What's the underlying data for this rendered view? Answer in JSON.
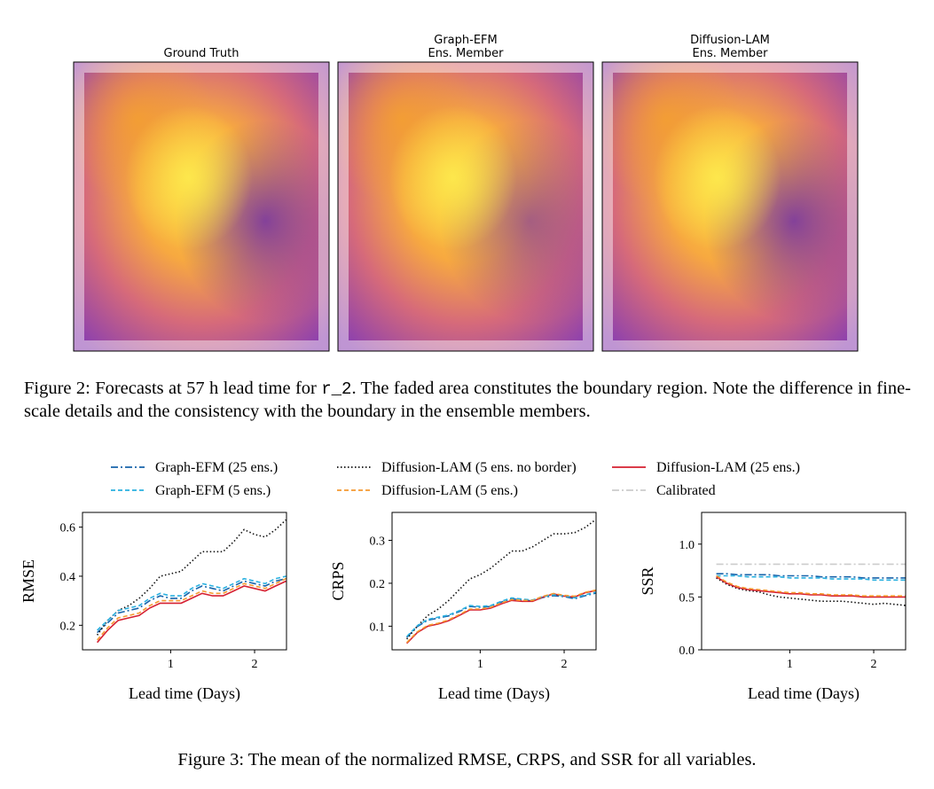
{
  "figure2": {
    "panels": [
      {
        "title": [
          "Ground Truth"
        ]
      },
      {
        "title": [
          "Graph-EFM",
          "Ens. Member"
        ]
      },
      {
        "title": [
          "Diffusion-LAM",
          "Ens. Member"
        ]
      }
    ],
    "caption": {
      "prefix": "Figure 2: Forecasts at 57 h lead time for ",
      "code": "r_2",
      "rest": ". The faded area constitutes the boundary region. Note the difference in fine-scale details and the consistency with the boundary in the ensemble members."
    }
  },
  "figure3": {
    "caption": "Figure 3: The mean of the normalized RMSE, CRPS, and SSR for all variables."
  },
  "chart_data": [
    {
      "type": "line",
      "ylabel": "RMSE",
      "xlabel": "Lead time (Days)",
      "xlim": [
        -0.05,
        2.38
      ],
      "xticks": [
        1,
        2
      ],
      "ylim": [
        0.1,
        0.66
      ],
      "yticks": [
        0.2,
        0.4,
        0.6
      ],
      "x": [
        0.125,
        0.25,
        0.375,
        0.5,
        0.625,
        0.75,
        0.875,
        1,
        1.125,
        1.25,
        1.375,
        1.5,
        1.625,
        1.75,
        1.875,
        2,
        2.125,
        2.25,
        2.375
      ],
      "series": [
        {
          "name": "Graph-EFM (25 ens.)",
          "color": "#1764ab",
          "dash": "dashdot",
          "values": [
            0.17,
            0.21,
            0.25,
            0.26,
            0.27,
            0.3,
            0.32,
            0.31,
            0.31,
            0.34,
            0.36,
            0.35,
            0.34,
            0.36,
            0.38,
            0.37,
            0.36,
            0.38,
            0.39
          ]
        },
        {
          "name": "Diffusion-LAM (5 ens. no border)",
          "color": "#111111",
          "dash": "dotted",
          "values": [
            0.16,
            0.22,
            0.26,
            0.28,
            0.31,
            0.35,
            0.4,
            0.41,
            0.42,
            0.46,
            0.5,
            0.5,
            0.5,
            0.54,
            0.59,
            0.57,
            0.56,
            0.59,
            0.63
          ]
        },
        {
          "name": "Diffusion-LAM (25 ens.)",
          "color": "#d62031",
          "dash": "solid",
          "values": [
            0.13,
            0.18,
            0.22,
            0.23,
            0.24,
            0.27,
            0.29,
            0.29,
            0.29,
            0.31,
            0.33,
            0.32,
            0.32,
            0.34,
            0.36,
            0.35,
            0.34,
            0.36,
            0.38
          ]
        },
        {
          "name": "Graph-EFM (5 ens.)",
          "color": "#29b0e0",
          "dash": "dashed",
          "values": [
            0.18,
            0.22,
            0.26,
            0.27,
            0.28,
            0.31,
            0.33,
            0.32,
            0.32,
            0.35,
            0.37,
            0.36,
            0.35,
            0.37,
            0.39,
            0.38,
            0.37,
            0.39,
            0.4
          ]
        },
        {
          "name": "Diffusion-LAM (5 ens.)",
          "color": "#f59a30",
          "dash": "dashed",
          "values": [
            0.14,
            0.19,
            0.23,
            0.24,
            0.25,
            0.28,
            0.3,
            0.3,
            0.3,
            0.32,
            0.34,
            0.33,
            0.33,
            0.35,
            0.37,
            0.36,
            0.35,
            0.37,
            0.39
          ]
        }
      ]
    },
    {
      "type": "line",
      "ylabel": "CRPS",
      "xlabel": "Lead time (Days)",
      "xlim": [
        -0.05,
        2.38
      ],
      "xticks": [
        1,
        2
      ],
      "ylim": [
        0.045,
        0.365
      ],
      "yticks": [
        0.1,
        0.2,
        0.3
      ],
      "x": [
        0.125,
        0.25,
        0.375,
        0.5,
        0.625,
        0.75,
        0.875,
        1,
        1.125,
        1.25,
        1.375,
        1.5,
        1.625,
        1.75,
        1.875,
        2,
        2.125,
        2.25,
        2.375
      ],
      "series": [
        {
          "name": "Graph-EFM (25 ens.)",
          "color": "#1764ab",
          "dash": "dashdot",
          "values": [
            0.074,
            0.099,
            0.114,
            0.119,
            0.124,
            0.134,
            0.146,
            0.144,
            0.146,
            0.156,
            0.164,
            0.161,
            0.159,
            0.167,
            0.171,
            0.169,
            0.164,
            0.171,
            0.177
          ]
        },
        {
          "name": "Diffusion-LAM (5 ens. no border)",
          "color": "#111111",
          "dash": "dotted",
          "values": [
            0.07,
            0.1,
            0.125,
            0.14,
            0.16,
            0.185,
            0.21,
            0.22,
            0.235,
            0.255,
            0.275,
            0.275,
            0.285,
            0.3,
            0.315,
            0.315,
            0.318,
            0.33,
            0.348
          ]
        },
        {
          "name": "Diffusion-LAM (25 ens.)",
          "color": "#d62031",
          "dash": "solid",
          "values": [
            0.06,
            0.085,
            0.1,
            0.105,
            0.113,
            0.125,
            0.138,
            0.138,
            0.142,
            0.152,
            0.16,
            0.158,
            0.158,
            0.168,
            0.175,
            0.17,
            0.168,
            0.178,
            0.183
          ]
        },
        {
          "name": "Graph-EFM (5 ens.)",
          "color": "#29b0e0",
          "dash": "dashed",
          "values": [
            0.076,
            0.101,
            0.116,
            0.121,
            0.126,
            0.136,
            0.148,
            0.146,
            0.148,
            0.158,
            0.166,
            0.163,
            0.161,
            0.169,
            0.173,
            0.171,
            0.166,
            0.173,
            0.179
          ]
        },
        {
          "name": "Diffusion-LAM (5 ens.)",
          "color": "#f59a30",
          "dash": "dashed",
          "values": [
            0.062,
            0.087,
            0.102,
            0.107,
            0.115,
            0.127,
            0.14,
            0.14,
            0.144,
            0.154,
            0.162,
            0.16,
            0.16,
            0.17,
            0.176,
            0.172,
            0.17,
            0.179,
            0.184
          ]
        }
      ]
    },
    {
      "type": "line",
      "ylabel": "SSR",
      "xlabel": "Lead time (Days)",
      "xlim": [
        -0.05,
        2.38
      ],
      "xticks": [
        1,
        2
      ],
      "ylim": [
        0,
        1.3
      ],
      "yticks": [
        {
          "value": 0,
          "label": "0.0"
        },
        {
          "value": 0.5,
          "label": "0.5"
        },
        {
          "value": 1,
          "label": "1.0"
        }
      ],
      "x": [
        0.125,
        0.25,
        0.375,
        0.5,
        0.625,
        0.75,
        0.875,
        1,
        1.125,
        1.25,
        1.375,
        1.5,
        1.625,
        1.75,
        1.875,
        2,
        2.125,
        2.25,
        2.375
      ],
      "series": [
        {
          "name": "Graph-EFM (25 ens.)",
          "color": "#1764ab",
          "dash": "dashdot",
          "values": [
            0.72,
            0.72,
            0.71,
            0.71,
            0.71,
            0.71,
            0.7,
            0.7,
            0.7,
            0.7,
            0.69,
            0.69,
            0.69,
            0.69,
            0.68,
            0.68,
            0.68,
            0.68,
            0.68
          ]
        },
        {
          "name": "Diffusion-LAM (5 ens. no border)",
          "color": "#111111",
          "dash": "dotted",
          "values": [
            0.68,
            0.62,
            0.58,
            0.56,
            0.55,
            0.52,
            0.5,
            0.49,
            0.48,
            0.47,
            0.46,
            0.46,
            0.46,
            0.45,
            0.44,
            0.43,
            0.44,
            0.43,
            0.42
          ]
        },
        {
          "name": "Diffusion-LAM (25 ens.)",
          "color": "#d62031",
          "dash": "solid",
          "values": [
            0.69,
            0.63,
            0.59,
            0.57,
            0.56,
            0.55,
            0.54,
            0.53,
            0.53,
            0.52,
            0.52,
            0.51,
            0.51,
            0.51,
            0.5,
            0.5,
            0.5,
            0.5,
            0.5
          ]
        },
        {
          "name": "Graph-EFM (5 ens.)",
          "color": "#29b0e0",
          "dash": "dashed",
          "values": [
            0.7,
            0.7,
            0.7,
            0.69,
            0.69,
            0.69,
            0.69,
            0.68,
            0.68,
            0.68,
            0.68,
            0.67,
            0.67,
            0.67,
            0.67,
            0.66,
            0.66,
            0.66,
            0.66
          ]
        },
        {
          "name": "Diffusion-LAM (5 ens.)",
          "color": "#f59a30",
          "dash": "dashed",
          "values": [
            0.7,
            0.64,
            0.6,
            0.58,
            0.57,
            0.56,
            0.55,
            0.54,
            0.54,
            0.53,
            0.53,
            0.52,
            0.52,
            0.52,
            0.51,
            0.51,
            0.51,
            0.51,
            0.51
          ]
        },
        {
          "name": "Calibrated",
          "color": "#cccccc",
          "dash": "dashdot",
          "values": [
            0.81,
            0.81,
            0.81,
            0.81,
            0.81,
            0.81,
            0.81,
            0.81,
            0.81,
            0.81,
            0.81,
            0.81,
            0.81,
            0.81,
            0.81,
            0.81,
            0.81,
            0.81,
            0.81
          ]
        }
      ]
    }
  ]
}
